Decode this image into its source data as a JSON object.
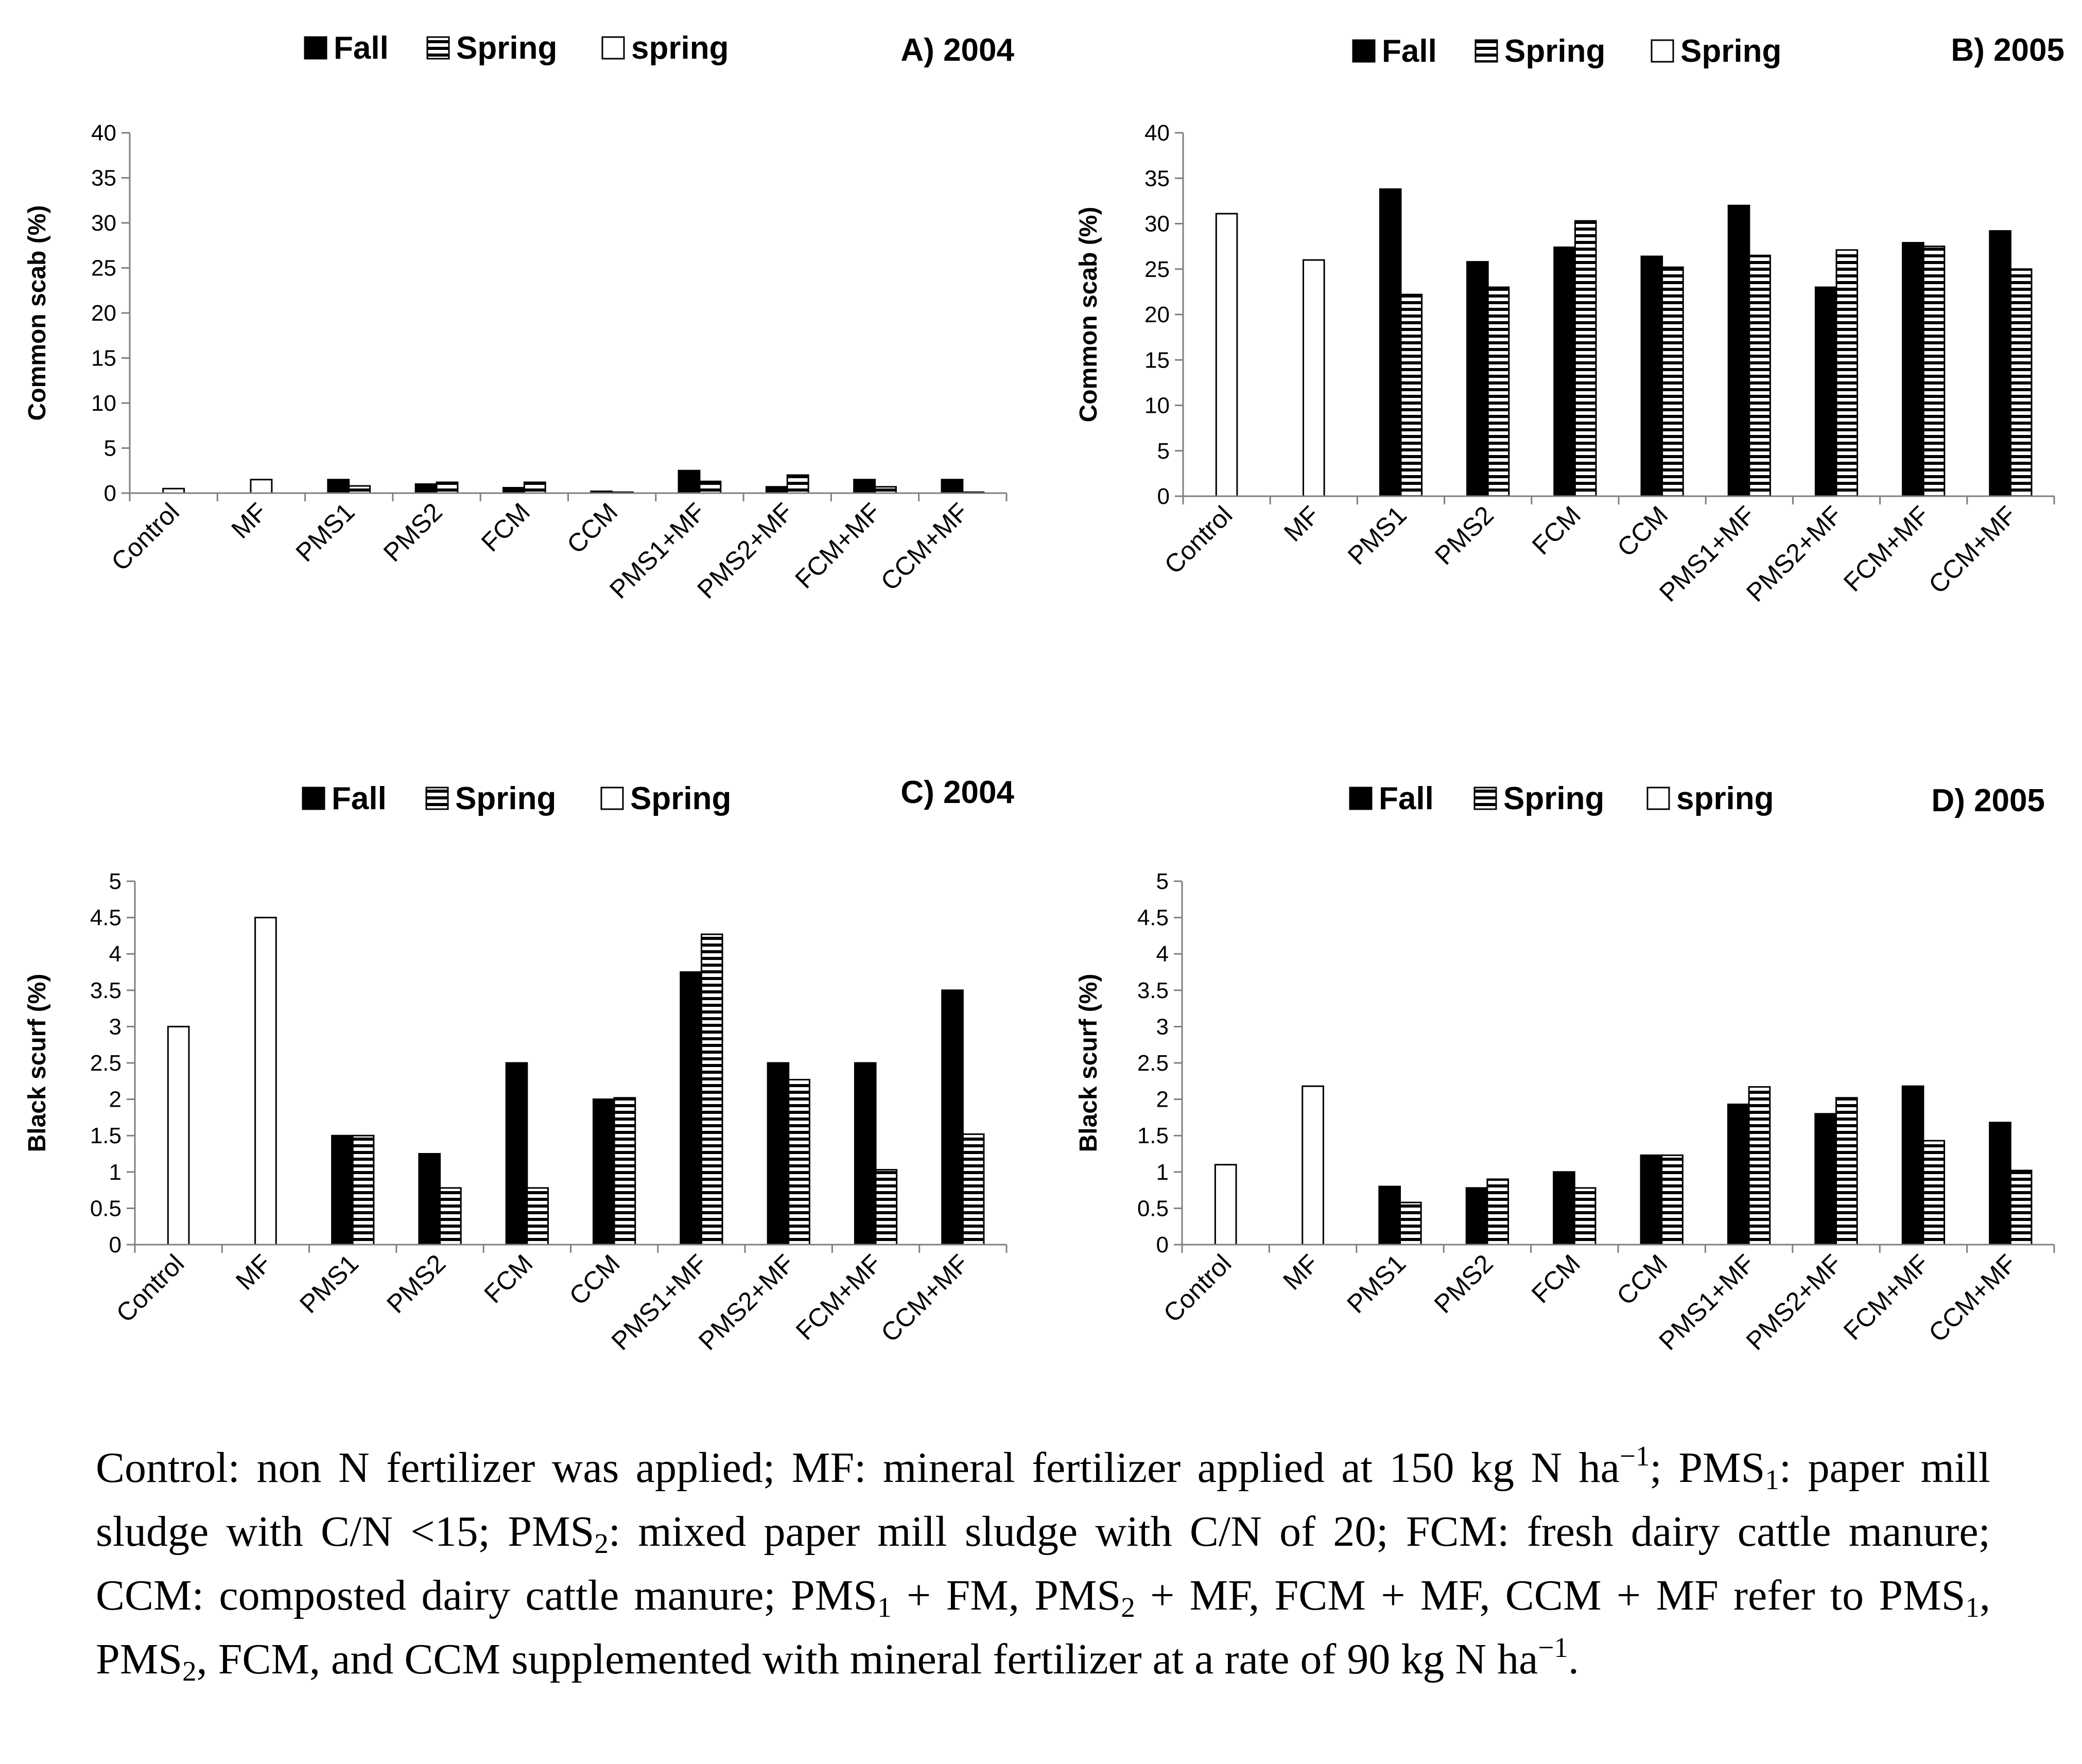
{
  "colors": {
    "ink": "#000000",
    "paper": "#ffffff"
  },
  "chart_data": [
    {
      "type": "bar",
      "panel_label": "A) 2004",
      "ylabel": "Common scab (%)",
      "ylim": [
        0,
        40
      ],
      "yticks": [
        "0",
        "5",
        "10",
        "15",
        "20",
        "25",
        "30",
        "35",
        "40"
      ],
      "categories": [
        "Control",
        "MF",
        "PMS1",
        "PMS2",
        "FCM",
        "CCM",
        "PMS1+MF",
        "PMS2+MF",
        "FCM+MF",
        "CCM+MF"
      ],
      "legend": [
        {
          "name": "Fall",
          "pattern": "solid"
        },
        {
          "name": "Spring",
          "pattern": "striped"
        },
        {
          "name": "spring",
          "pattern": "empty"
        }
      ],
      "series": [
        {
          "name": "Fall",
          "pattern": "solid",
          "values": [
            null,
            null,
            1.5,
            1.0,
            0.6,
            0.2,
            2.5,
            0.7,
            1.5,
            1.5
          ]
        },
        {
          "name": "Spring",
          "pattern": "striped",
          "values": [
            null,
            null,
            0.8,
            1.2,
            1.2,
            0.1,
            1.3,
            2.0,
            0.7,
            0.1
          ]
        },
        {
          "name": "spring",
          "pattern": "empty",
          "values": [
            0.5,
            1.5,
            null,
            null,
            null,
            null,
            null,
            null,
            null,
            null
          ]
        }
      ]
    },
    {
      "type": "bar",
      "panel_label": "B) 2005",
      "ylabel": "Common scab (%)",
      "ylim": [
        0,
        40
      ],
      "yticks": [
        "0",
        "5",
        "10",
        "15",
        "20",
        "25",
        "30",
        "35",
        "40"
      ],
      "categories": [
        "Control",
        "MF",
        "PMS1",
        "PMS2",
        "FCM",
        "CCM",
        "PMS1+MF",
        "PMS2+MF",
        "FCM+MF",
        "CCM+MF"
      ],
      "legend": [
        {
          "name": "Fall",
          "pattern": "solid"
        },
        {
          "name": "Spring",
          "pattern": "striped"
        },
        {
          "name": "Spring",
          "pattern": "empty"
        }
      ],
      "series": [
        {
          "name": "Fall",
          "pattern": "solid",
          "values": [
            null,
            null,
            33.8,
            25.8,
            27.4,
            26.4,
            32.0,
            23.0,
            27.9,
            29.2
          ]
        },
        {
          "name": "Spring",
          "pattern": "striped",
          "values": [
            null,
            null,
            22.2,
            23.0,
            30.3,
            25.2,
            26.5,
            27.1,
            27.5,
            25.0
          ]
        },
        {
          "name": "Spring",
          "pattern": "empty",
          "values": [
            31.1,
            26.0,
            null,
            null,
            null,
            null,
            null,
            null,
            null,
            null
          ]
        }
      ]
    },
    {
      "type": "bar",
      "panel_label": "C) 2004",
      "ylabel": "Black scurf (%)",
      "ylim": [
        0,
        5
      ],
      "yticks": [
        "0",
        "0.5",
        "1",
        "1.5",
        "2",
        "2.5",
        "3",
        "3.5",
        "4",
        "4.5",
        "5"
      ],
      "categories": [
        "Control",
        "MF",
        "PMS1",
        "PMS2",
        "FCM",
        "CCM",
        "PMS1+MF",
        "PMS2+MF",
        "FCM+MF",
        "CCM+MF"
      ],
      "legend": [
        {
          "name": "Fall",
          "pattern": "solid"
        },
        {
          "name": "Spring",
          "pattern": "striped"
        },
        {
          "name": "Spring",
          "pattern": "empty"
        }
      ],
      "series": [
        {
          "name": "Fall",
          "pattern": "solid",
          "values": [
            null,
            null,
            1.5,
            1.25,
            2.5,
            2.0,
            3.75,
            2.5,
            2.5,
            3.5
          ]
        },
        {
          "name": "Spring",
          "pattern": "striped",
          "values": [
            null,
            null,
            1.5,
            0.78,
            0.78,
            2.02,
            4.27,
            2.27,
            1.03,
            1.52
          ]
        },
        {
          "name": "Spring",
          "pattern": "empty",
          "values": [
            3.0,
            4.5,
            null,
            null,
            null,
            null,
            null,
            null,
            null,
            null
          ]
        }
      ]
    },
    {
      "type": "bar",
      "panel_label": "D) 2005",
      "ylabel": "Black scurf (%)",
      "ylim": [
        0,
        5
      ],
      "yticks": [
        "0",
        "0.5",
        "1",
        "1.5",
        "2",
        "2.5",
        "3",
        "3.5",
        "4",
        "4.5",
        "5"
      ],
      "categories": [
        "Control",
        "MF",
        "PMS1",
        "PMS2",
        "FCM",
        "CCM",
        "PMS1+MF",
        "PMS2+MF",
        "FCM+MF",
        "CCM+MF"
      ],
      "legend": [
        {
          "name": "Fall",
          "pattern": "solid"
        },
        {
          "name": "Spring",
          "pattern": "striped"
        },
        {
          "name": "spring",
          "pattern": "empty"
        }
      ],
      "series": [
        {
          "name": "Fall",
          "pattern": "solid",
          "values": [
            null,
            null,
            0.8,
            0.78,
            1.0,
            1.23,
            1.93,
            1.8,
            2.18,
            1.68
          ]
        },
        {
          "name": "Spring",
          "pattern": "striped",
          "values": [
            null,
            null,
            0.58,
            0.9,
            0.78,
            1.23,
            2.17,
            2.02,
            1.43,
            1.02
          ]
        },
        {
          "name": "spring",
          "pattern": "empty",
          "values": [
            1.1,
            2.18,
            null,
            null,
            null,
            null,
            null,
            null,
            null,
            null
          ]
        }
      ]
    }
  ],
  "caption": {
    "s1": "Control: non N fertilizer was applied; MF: mineral fertilizer applied at 150 kg N ha",
    "s2": "−1",
    "s3": "; PMS",
    "s4": "1",
    "s5": ": paper mill sludge with C/N <15; PMS",
    "s6": "2",
    "s7": ": mixed paper mill sludge with C/N of 20; FCM: fresh dairy cattle manure; CCM: composted dairy cattle manure; PMS",
    "s8": "1",
    "s9": " + FM, PMS",
    "s10": "2",
    "s11": " + MF, FCM + MF, CCM + MF refer to PMS",
    "s12": "1",
    "s13": ", PMS",
    "s14": "2",
    "s15": ", FCM, and CCM supplemented with mineral fertilizer at a rate of 90 kg N ha",
    "s16": "−1",
    "s17": "."
  }
}
